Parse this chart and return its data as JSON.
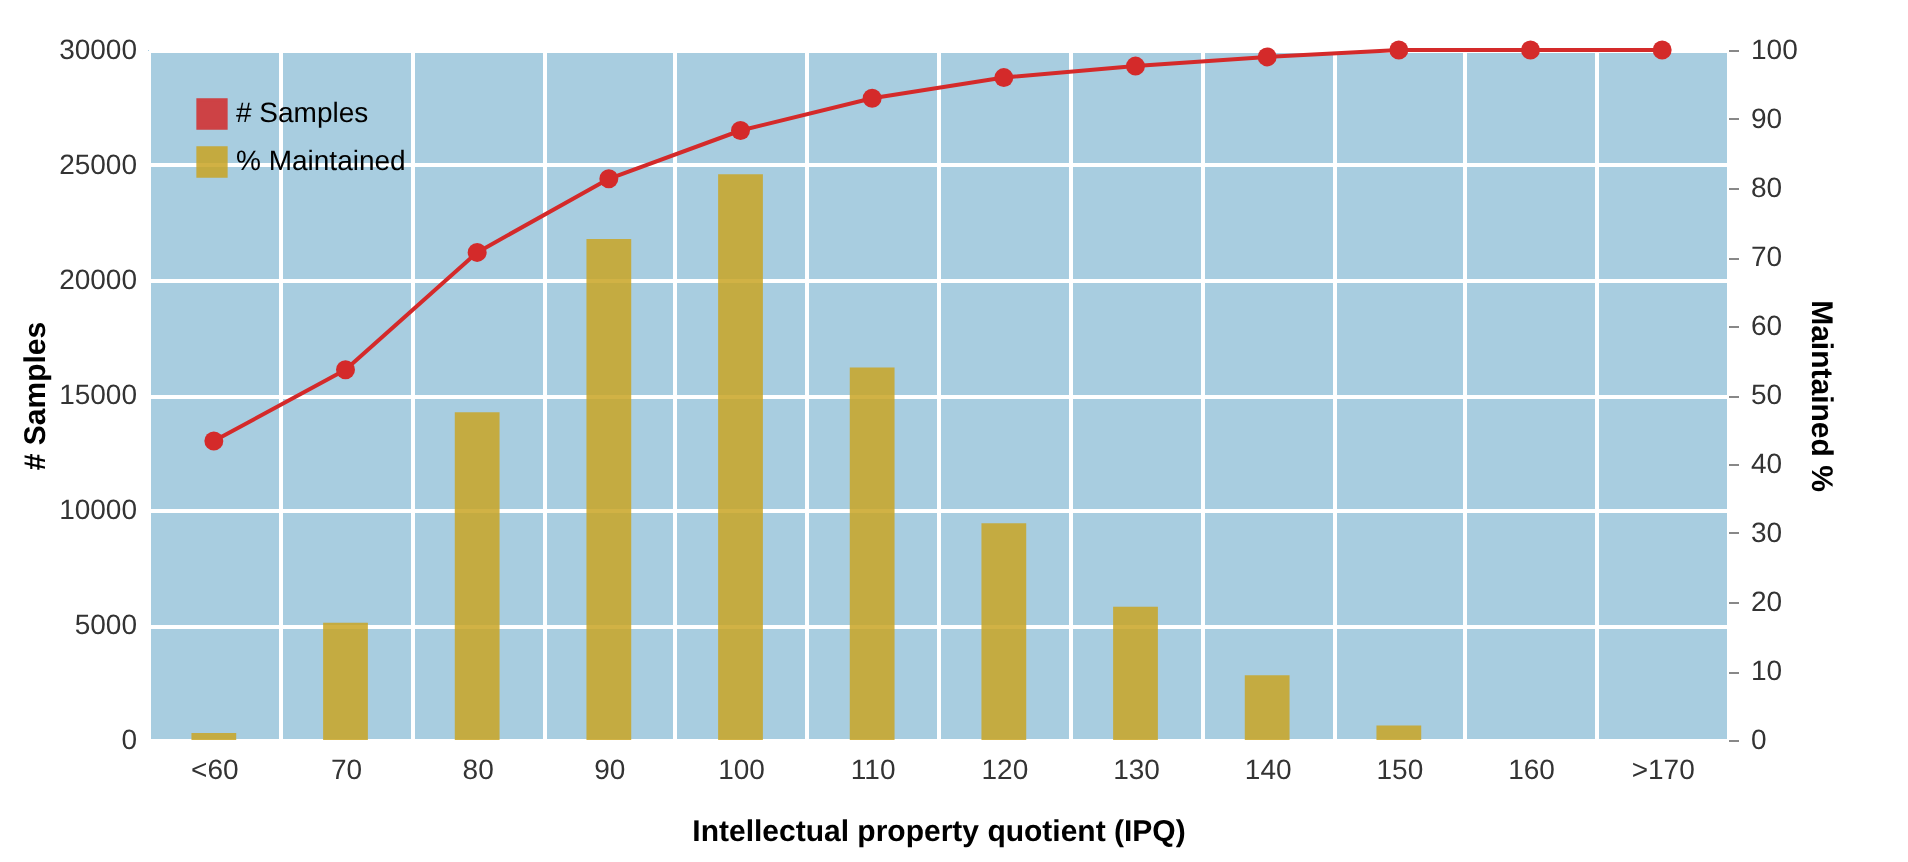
{
  "chart_data": {
    "type": "bar",
    "xlabel": "Intellectual property quotient (IPQ)",
    "ylabel": "# Samples",
    "y2label": "Maintained %",
    "categories": [
      "<60",
      "70",
      "80",
      "90",
      "100",
      "110",
      "120",
      "130",
      "140",
      "150",
      "160",
      ">170"
    ],
    "series": [
      {
        "name": "# Samples",
        "type": "line",
        "color": "#d42a2a",
        "marker": "circle",
        "values": [
          13000,
          16100,
          21200,
          24400,
          26500,
          27900,
          28800,
          29300,
          29700,
          30000,
          30000,
          30000
        ]
      },
      {
        "name": "% Maintained",
        "axis": "y2",
        "color": "#c9a424",
        "values": [
          1.0,
          17,
          47.5,
          72.6,
          82,
          54,
          31.4,
          19.3,
          9.4,
          2.1,
          null,
          null
        ]
      }
    ],
    "ylim": [
      0,
      30000
    ],
    "yticks": [
      0,
      5000,
      10000,
      15000,
      20000,
      25000,
      30000
    ],
    "y2lim": [
      0,
      100
    ],
    "y2ticks": [
      0,
      10,
      20,
      30,
      40,
      50,
      60,
      70,
      80,
      90,
      100
    ],
    "grid": true,
    "legend": "top left"
  }
}
